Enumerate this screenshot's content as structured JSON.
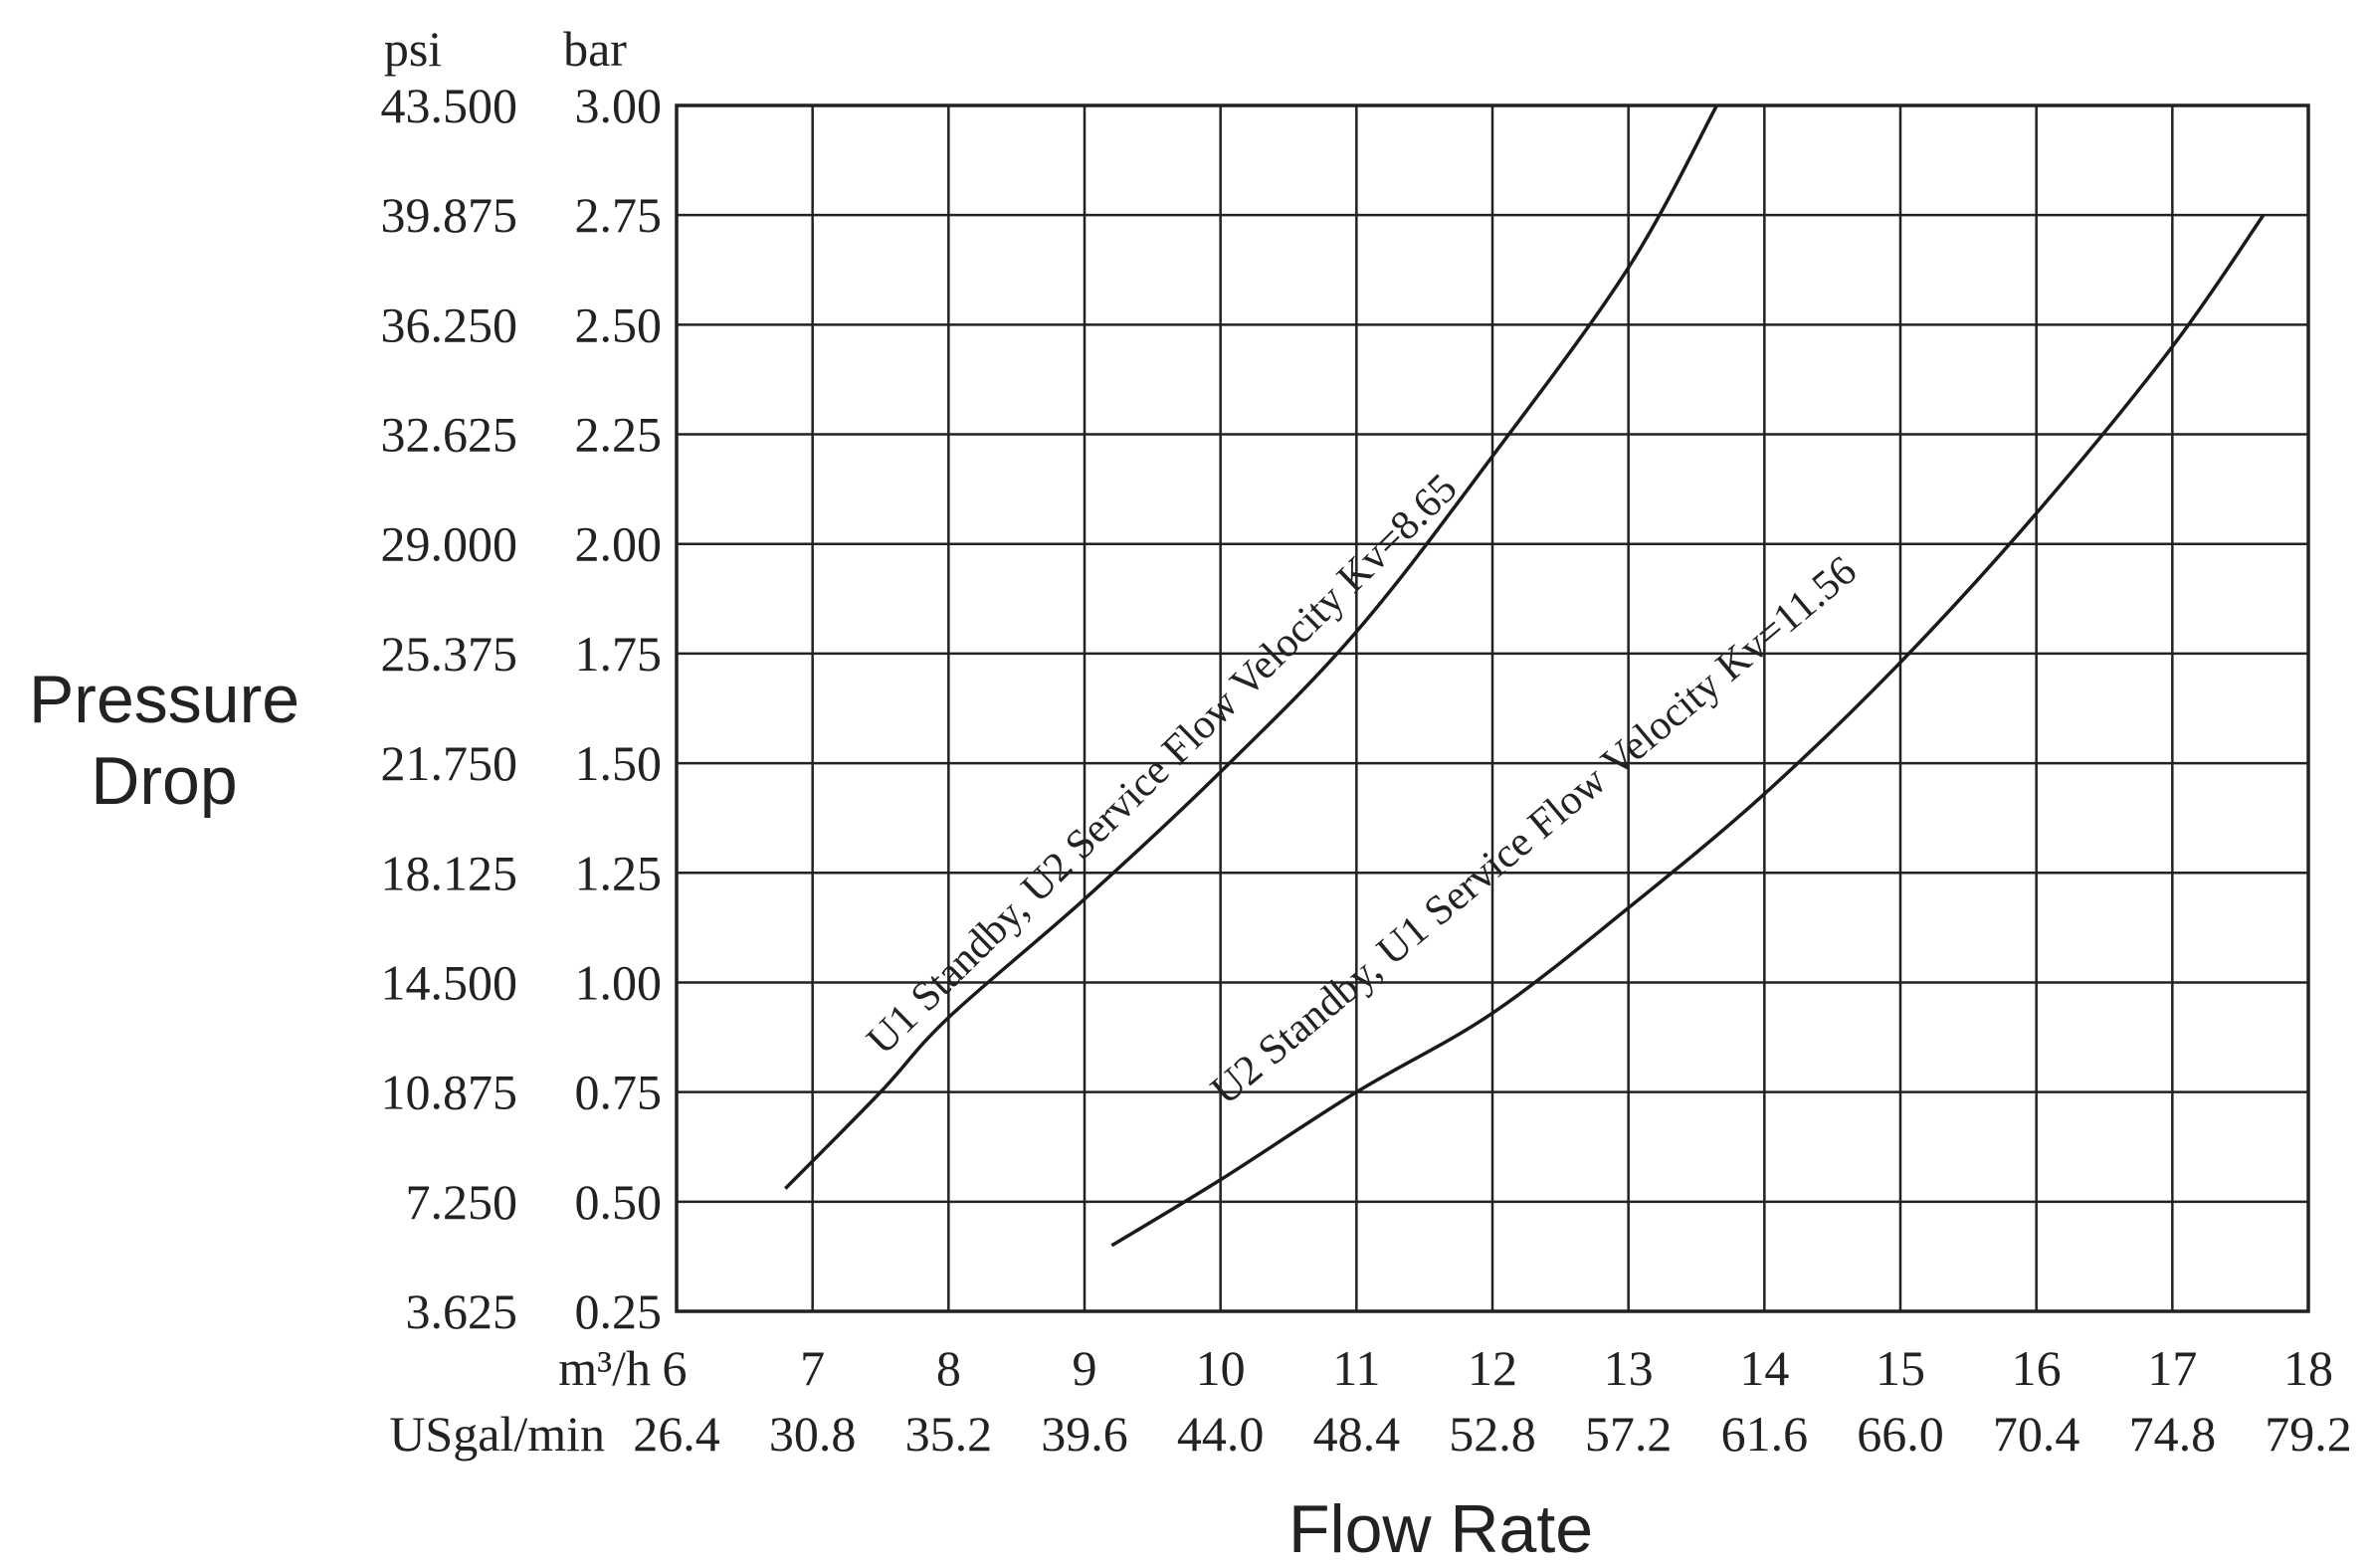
{
  "chart_data": {
    "type": "line",
    "xlabel": "Flow Rate",
    "ylabel_lines": [
      "Pressure",
      "Drop"
    ],
    "x_unit_primary": "m³/h",
    "x_unit_secondary": "USgal/min",
    "y_unit_left": "psi",
    "y_unit_right": "bar",
    "xlim": [
      6,
      18
    ],
    "ylim": [
      0.25,
      3.0
    ],
    "x_ticks_m3h": [
      "6",
      "7",
      "8",
      "9",
      "10",
      "11",
      "12",
      "13",
      "14",
      "15",
      "16",
      "17",
      "18"
    ],
    "x_ticks_usgal": [
      "26.4",
      "30.8",
      "35.2",
      "39.6",
      "44.0",
      "48.4",
      "52.8",
      "57.2",
      "61.6",
      "66.0",
      "70.4",
      "74.8",
      "79.2"
    ],
    "y_ticks_bar": [
      "0.25",
      "0.50",
      "0.75",
      "1.00",
      "1.25",
      "1.50",
      "1.75",
      "2.00",
      "2.25",
      "2.50",
      "2.75",
      "3.00"
    ],
    "y_ticks_psi": [
      "3.625",
      "7.250",
      "10.875",
      "14.500",
      "18.125",
      "21.750",
      "25.375",
      "29.000",
      "32.625",
      "36.250",
      "39.875",
      "43.500"
    ],
    "grid": true,
    "series": [
      {
        "name": "U1 Standby, U2 Service Flow Velocity Kv=8.65",
        "x": [
          6.8,
          7.5,
          8.0,
          9.0,
          10.0,
          11.0,
          12.0,
          13.0,
          13.65
        ],
        "y": [
          0.53,
          0.75,
          0.92,
          1.19,
          1.48,
          1.8,
          2.2,
          2.63,
          3.0
        ]
      },
      {
        "name": "U2 Standby, U1 Service Flow Velocity Kv=11.56",
        "x": [
          9.2,
          10.0,
          11.0,
          12.0,
          13.0,
          14.0,
          15.0,
          16.0,
          17.0,
          17.67
        ],
        "y": [
          0.4,
          0.55,
          0.75,
          0.93,
          1.17,
          1.43,
          1.73,
          2.07,
          2.45,
          2.75
        ]
      }
    ]
  }
}
